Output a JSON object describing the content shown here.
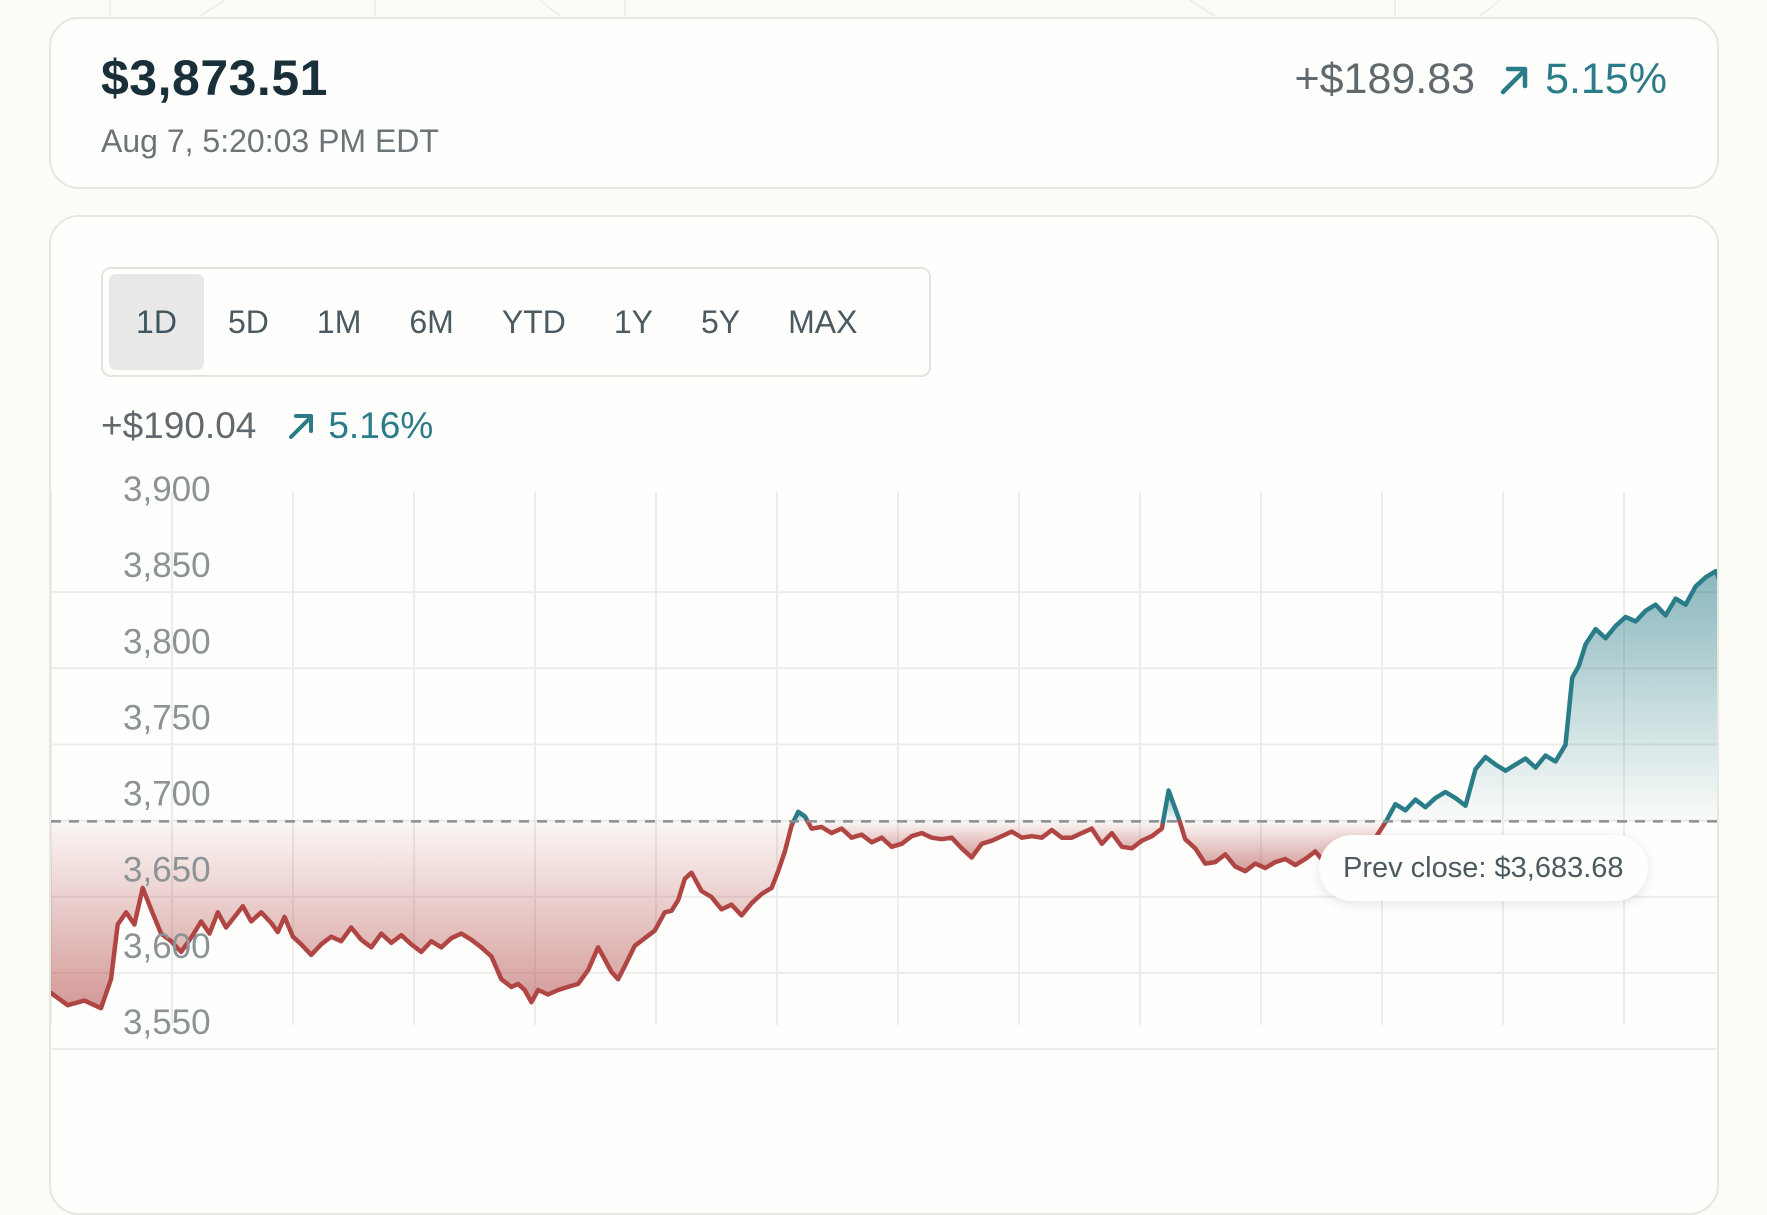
{
  "quote": {
    "price": "$3,873.51",
    "timestamp": "Aug 7, 5:20:03 PM EDT",
    "change_abs": "+$189.83",
    "change_pct": "5.15%"
  },
  "range_selector": {
    "options": [
      "1D",
      "5D",
      "1M",
      "6M",
      "YTD",
      "1Y",
      "5Y",
      "MAX"
    ],
    "selected": "1D"
  },
  "period_change": {
    "change_abs": "+$190.04",
    "change_pct": "5.16%"
  },
  "colors": {
    "up": "#2a7c88",
    "down": "#b04644",
    "muted": "#60696d"
  },
  "icons": {
    "trend": "arrow-up-right-icon"
  },
  "chart_data": {
    "type": "area",
    "y_ticks": [
      "3,900",
      "3,850",
      "3,800",
      "3,750",
      "3,700",
      "3,650",
      "3,600",
      "3,550"
    ],
    "ylim": [
      3530,
      3905
    ],
    "xlim": [
      0,
      1
    ],
    "grid": true,
    "baseline": 3683.68,
    "baseline_label": "Prev close: $3,683.68",
    "series": [
      {
        "points": [
          [
            0.0,
            3571
          ],
          [
            0.01,
            3563
          ],
          [
            0.02,
            3566
          ],
          [
            0.03,
            3561
          ],
          [
            0.036,
            3580
          ],
          [
            0.04,
            3616
          ],
          [
            0.045,
            3624
          ],
          [
            0.05,
            3616
          ],
          [
            0.055,
            3640
          ],
          [
            0.06,
            3626
          ],
          [
            0.066,
            3610
          ],
          [
            0.072,
            3605
          ],
          [
            0.078,
            3598
          ],
          [
            0.085,
            3609
          ],
          [
            0.09,
            3618
          ],
          [
            0.095,
            3610
          ],
          [
            0.1,
            3624
          ],
          [
            0.105,
            3614
          ],
          [
            0.11,
            3621
          ],
          [
            0.115,
            3628
          ],
          [
            0.12,
            3618
          ],
          [
            0.126,
            3624
          ],
          [
            0.132,
            3617
          ],
          [
            0.136,
            3611
          ],
          [
            0.14,
            3621
          ],
          [
            0.145,
            3608
          ],
          [
            0.15,
            3603
          ],
          [
            0.156,
            3596
          ],
          [
            0.162,
            3603
          ],
          [
            0.168,
            3608
          ],
          [
            0.174,
            3605
          ],
          [
            0.18,
            3614
          ],
          [
            0.186,
            3606
          ],
          [
            0.192,
            3601
          ],
          [
            0.198,
            3610
          ],
          [
            0.204,
            3604
          ],
          [
            0.21,
            3609
          ],
          [
            0.216,
            3603
          ],
          [
            0.222,
            3598
          ],
          [
            0.228,
            3605
          ],
          [
            0.234,
            3601
          ],
          [
            0.24,
            3607
          ],
          [
            0.246,
            3610
          ],
          [
            0.252,
            3606
          ],
          [
            0.258,
            3601
          ],
          [
            0.264,
            3595
          ],
          [
            0.27,
            3580
          ],
          [
            0.276,
            3575
          ],
          [
            0.28,
            3577
          ],
          [
            0.284,
            3573
          ],
          [
            0.288,
            3565
          ],
          [
            0.292,
            3573
          ],
          [
            0.298,
            3570
          ],
          [
            0.304,
            3573
          ],
          [
            0.31,
            3575
          ],
          [
            0.316,
            3577
          ],
          [
            0.322,
            3586
          ],
          [
            0.328,
            3601
          ],
          [
            0.332,
            3593
          ],
          [
            0.336,
            3585
          ],
          [
            0.34,
            3580
          ],
          [
            0.345,
            3591
          ],
          [
            0.35,
            3602
          ],
          [
            0.356,
            3607
          ],
          [
            0.362,
            3612
          ],
          [
            0.368,
            3624
          ],
          [
            0.372,
            3625
          ],
          [
            0.376,
            3632
          ],
          [
            0.38,
            3646
          ],
          [
            0.384,
            3650
          ],
          [
            0.39,
            3638
          ],
          [
            0.396,
            3634
          ],
          [
            0.402,
            3626
          ],
          [
            0.408,
            3629
          ],
          [
            0.414,
            3622
          ],
          [
            0.42,
            3630
          ],
          [
            0.426,
            3636
          ],
          [
            0.432,
            3640
          ],
          [
            0.436,
            3651
          ],
          [
            0.44,
            3664
          ],
          [
            0.444,
            3681
          ],
          [
            0.448,
            3690
          ],
          [
            0.452,
            3687
          ],
          [
            0.456,
            3679
          ],
          [
            0.462,
            3680
          ],
          [
            0.468,
            3676
          ],
          [
            0.474,
            3679
          ],
          [
            0.48,
            3673
          ],
          [
            0.486,
            3675
          ],
          [
            0.492,
            3670
          ],
          [
            0.498,
            3673
          ],
          [
            0.504,
            3667
          ],
          [
            0.51,
            3669
          ],
          [
            0.516,
            3674
          ],
          [
            0.522,
            3676
          ],
          [
            0.528,
            3673
          ],
          [
            0.534,
            3672
          ],
          [
            0.54,
            3673
          ],
          [
            0.546,
            3666
          ],
          [
            0.552,
            3660
          ],
          [
            0.558,
            3669
          ],
          [
            0.564,
            3671
          ],
          [
            0.57,
            3674
          ],
          [
            0.576,
            3677
          ],
          [
            0.582,
            3673
          ],
          [
            0.588,
            3674
          ],
          [
            0.594,
            3673
          ],
          [
            0.6,
            3678
          ],
          [
            0.606,
            3673
          ],
          [
            0.612,
            3673
          ],
          [
            0.618,
            3676
          ],
          [
            0.624,
            3679
          ],
          [
            0.63,
            3669
          ],
          [
            0.636,
            3676
          ],
          [
            0.642,
            3667
          ],
          [
            0.648,
            3666
          ],
          [
            0.654,
            3671
          ],
          [
            0.66,
            3674
          ],
          [
            0.666,
            3679
          ],
          [
            0.67,
            3704
          ],
          [
            0.676,
            3686
          ],
          [
            0.68,
            3672
          ],
          [
            0.686,
            3666
          ],
          [
            0.692,
            3656
          ],
          [
            0.698,
            3657
          ],
          [
            0.704,
            3662
          ],
          [
            0.71,
            3654
          ],
          [
            0.716,
            3651
          ],
          [
            0.722,
            3656
          ],
          [
            0.728,
            3653
          ],
          [
            0.734,
            3657
          ],
          [
            0.74,
            3659
          ],
          [
            0.746,
            3655
          ],
          [
            0.752,
            3659
          ],
          [
            0.758,
            3664
          ],
          [
            0.764,
            3656
          ],
          [
            0.77,
            3654
          ],
          [
            0.776,
            3661
          ],
          [
            0.782,
            3656
          ],
          [
            0.788,
            3664
          ],
          [
            0.794,
            3673
          ],
          [
            0.8,
            3683
          ],
          [
            0.806,
            3695
          ],
          [
            0.812,
            3691
          ],
          [
            0.818,
            3698
          ],
          [
            0.824,
            3693
          ],
          [
            0.83,
            3699
          ],
          [
            0.836,
            3703
          ],
          [
            0.842,
            3699
          ],
          [
            0.848,
            3694
          ],
          [
            0.854,
            3718
          ],
          [
            0.86,
            3726
          ],
          [
            0.866,
            3721
          ],
          [
            0.872,
            3717
          ],
          [
            0.878,
            3721
          ],
          [
            0.884,
            3725
          ],
          [
            0.89,
            3719
          ],
          [
            0.896,
            3727
          ],
          [
            0.902,
            3723
          ],
          [
            0.908,
            3734
          ],
          [
            0.912,
            3778
          ],
          [
            0.916,
            3786
          ],
          [
            0.92,
            3800
          ],
          [
            0.926,
            3810
          ],
          [
            0.932,
            3804
          ],
          [
            0.938,
            3812
          ],
          [
            0.944,
            3818
          ],
          [
            0.95,
            3815
          ],
          [
            0.956,
            3822
          ],
          [
            0.962,
            3826
          ],
          [
            0.968,
            3819
          ],
          [
            0.974,
            3830
          ],
          [
            0.98,
            3826
          ],
          [
            0.986,
            3838
          ],
          [
            0.992,
            3844
          ],
          [
            0.998,
            3848
          ],
          [
            1.0,
            3843
          ]
        ]
      }
    ]
  }
}
